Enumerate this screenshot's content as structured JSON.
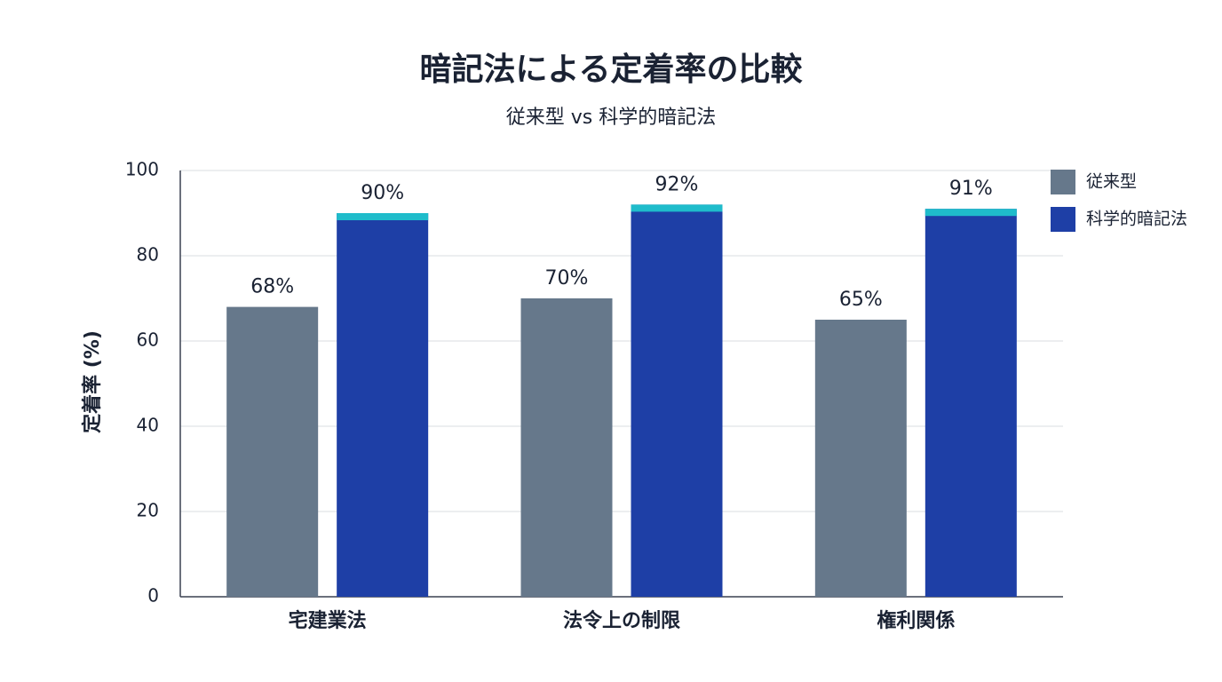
{
  "chart_data": {
    "type": "bar",
    "title": "暗記法による定着率の比較",
    "subtitle": "従来型 vs 科学的暗記法",
    "y_label": "定着率 (%)",
    "categories": [
      "宅建業法",
      "法令上の制限",
      "権利関係"
    ],
    "series": [
      {
        "name": "従来型",
        "color": "#66788b",
        "values": [
          68,
          70,
          65
        ],
        "value_labels": [
          "68%",
          "70%",
          "65%"
        ]
      },
      {
        "name": "科学的暗記法",
        "color": "#1e3fa6",
        "cap_color": "#1fbccb",
        "values": [
          90,
          92,
          91
        ],
        "value_labels": [
          "90%",
          "92%",
          "91%"
        ]
      }
    ],
    "ylim": [
      0,
      100
    ],
    "yticks": [
      0,
      20,
      40,
      60,
      80,
      100
    ],
    "grid": true,
    "legend": "top-right"
  }
}
